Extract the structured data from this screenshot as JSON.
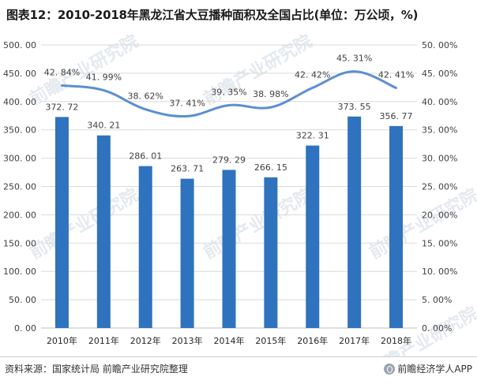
{
  "title": "图表12：2010-2018年黑龙江省大豆播种面积及全国占比(单位：万公顷，%)",
  "source": "资料来源：国家统计局 前瞻产业研究院整理",
  "brand": "前瞻经济学人APP",
  "brand_icon": "wechat-icon",
  "watermark": "前瞻产业研究院",
  "colors": {
    "bar": "#2f72bd",
    "line": "#5b8fd0",
    "grid": "#d9d9d9",
    "text": "#404040"
  },
  "chart_data": {
    "type": "bar",
    "categories": [
      "2010年",
      "2011年",
      "2012年",
      "2013年",
      "2014年",
      "2015年",
      "2016年",
      "2017年",
      "2018年"
    ],
    "series": [
      {
        "type": "bar",
        "axis": "left",
        "values": [
          372.72,
          340.21,
          286.01,
          263.71,
          279.29,
          266.15,
          322.31,
          373.55,
          356.77
        ],
        "labels": [
          "372. 72",
          "340. 21",
          "286. 01",
          "263. 71",
          "279. 29",
          "266. 15",
          "322. 31",
          "373. 55",
          "356. 77"
        ]
      },
      {
        "type": "line",
        "axis": "right",
        "values": [
          42.84,
          41.99,
          38.62,
          37.41,
          39.35,
          38.98,
          42.42,
          45.31,
          42.41
        ],
        "labels": [
          "42. 84%",
          "41. 99%",
          "38. 62%",
          "37. 41%",
          "39. 35%",
          "38. 98%",
          "42. 42%",
          "45. 31%",
          "42. 41%"
        ]
      }
    ],
    "y_left": {
      "range": [
        0,
        500
      ],
      "ticks": [
        "0. 00",
        "50. 00",
        "100. 00",
        "150. 00",
        "200. 00",
        "250. 00",
        "300. 00",
        "350. 00",
        "400. 00",
        "450. 00",
        "500. 00"
      ]
    },
    "y_right": {
      "range": [
        0,
        50
      ],
      "ticks": [
        "0. 00%",
        "5. 00%",
        "10. 00%",
        "15. 00%",
        "20. 00%",
        "25. 00%",
        "30. 00%",
        "35. 00%",
        "40. 00%",
        "45. 00%",
        "50. 00%"
      ]
    },
    "grid": true,
    "legend": "none"
  }
}
